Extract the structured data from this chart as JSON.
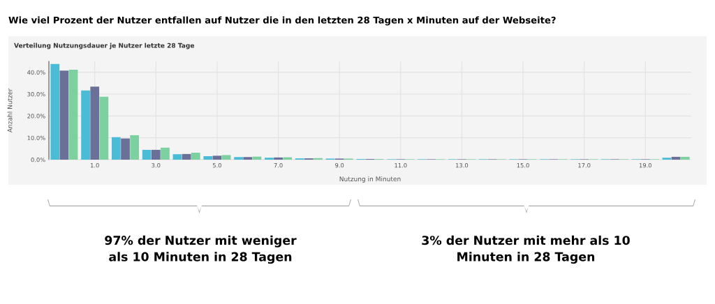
{
  "chart_data": {
    "type": "bar",
    "title": "Verteilung Nutzungsdauer je Nutzer letzte 28 Tage",
    "subtitle": "Wie viel Prozent der Nutzer entfallen auf Nutzer die in den letzten 28 Tagen x Minuten auf der Webseite?",
    "xlabel": "Nutzung in Minuten",
    "ylabel": "Anzahl Nutzer",
    "x": [
      0,
      1,
      2,
      3,
      4,
      5,
      6,
      7,
      8,
      9,
      10,
      11,
      12,
      13,
      14,
      15,
      16,
      17,
      18,
      19,
      20
    ],
    "series": [
      {
        "color": "#4bbcd6",
        "values": [
          43.8,
          31.7,
          10.3,
          4.5,
          2.5,
          1.6,
          1.2,
          0.9,
          0.6,
          0.5,
          0.3,
          0.2,
          0.2,
          0.2,
          0.2,
          0.2,
          0.2,
          0.2,
          0.2,
          0.2,
          0.9
        ]
      },
      {
        "color": "#6b7099",
        "values": [
          40.8,
          33.4,
          9.7,
          4.5,
          2.6,
          1.8,
          1.2,
          1.0,
          0.6,
          0.5,
          0.3,
          0.2,
          0.2,
          0.2,
          0.2,
          0.2,
          0.2,
          0.2,
          0.2,
          0.2,
          1.3
        ]
      },
      {
        "color": "#7dd0a0",
        "values": [
          41.2,
          28.8,
          11.2,
          5.5,
          3.2,
          2.1,
          1.4,
          1.1,
          0.7,
          0.5,
          0.3,
          0.2,
          0.2,
          0.2,
          0.2,
          0.2,
          0.2,
          0.2,
          0.2,
          0.2,
          1.3
        ]
      }
    ],
    "xlim": [
      -0.5,
      20.5
    ],
    "xticks": [
      {
        "value": 1,
        "label": "1.0"
      },
      {
        "value": 3,
        "label": "3.0"
      },
      {
        "value": 5,
        "label": "5.0"
      },
      {
        "value": 7,
        "label": "7.0"
      },
      {
        "value": 9,
        "label": "9.0"
      },
      {
        "value": 11,
        "label": "11.0"
      },
      {
        "value": 13,
        "label": "13.0"
      },
      {
        "value": 15,
        "label": "15.0"
      },
      {
        "value": 17,
        "label": "17.0"
      },
      {
        "value": 19,
        "label": "19.0"
      }
    ],
    "ylim": [
      0,
      45
    ],
    "yticks": [
      {
        "value": 0,
        "label": "0.0%"
      },
      {
        "value": 10,
        "label": "10.0%"
      },
      {
        "value": 20,
        "label": "20.0%"
      },
      {
        "value": 30,
        "label": "30.0%"
      },
      {
        "value": 40,
        "label": "40.0%"
      }
    ],
    "grid": true,
    "legend": false,
    "annotations": [
      "97% der Nutzer mit weniger\nals 10 Minuten in 28 Tagen",
      "3% der Nutzer mit mehr als 10\nMinuten in 28 Tagen"
    ]
  }
}
